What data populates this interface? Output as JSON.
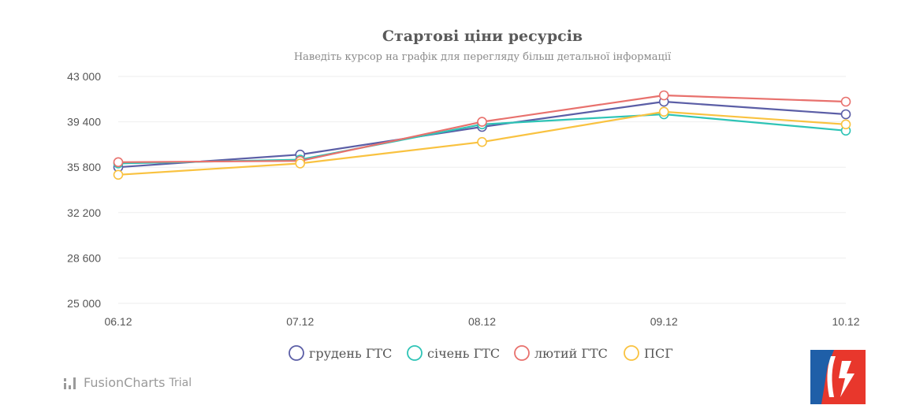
{
  "chart_data": {
    "type": "line",
    "title": "Стартові ціни ресурсів",
    "subtitle": "Наведіть курсор на графік для перегляду більш детальної інформації",
    "categories": [
      "06.12",
      "07.12",
      "08.12",
      "09.12",
      "10.12"
    ],
    "ylim": [
      25000,
      43000
    ],
    "yticks": [
      25000,
      28600,
      32200,
      35800,
      39400,
      43000
    ],
    "ytick_labels": [
      "25 000",
      "28 600",
      "32 200",
      "35 800",
      "39 400",
      "43 000"
    ],
    "grid": true,
    "legend_position": "bottom",
    "series": [
      {
        "name": "грудень ГТС",
        "color": "#5b5ea6",
        "values": [
          35800,
          36800,
          39000,
          41000,
          40000
        ]
      },
      {
        "name": "січень ГТС",
        "color": "#2ec4b6",
        "values": [
          36100,
          36400,
          39200,
          40000,
          38700
        ]
      },
      {
        "name": "лютий ГТС",
        "color": "#e8716d",
        "values": [
          36200,
          36300,
          39400,
          41500,
          41000
        ]
      },
      {
        "name": "ПСГ",
        "color": "#f9c240",
        "values": [
          35200,
          36100,
          37800,
          40200,
          39200
        ]
      }
    ]
  },
  "watermark": {
    "brand": "FusionCharts",
    "suffix": "Trial"
  }
}
